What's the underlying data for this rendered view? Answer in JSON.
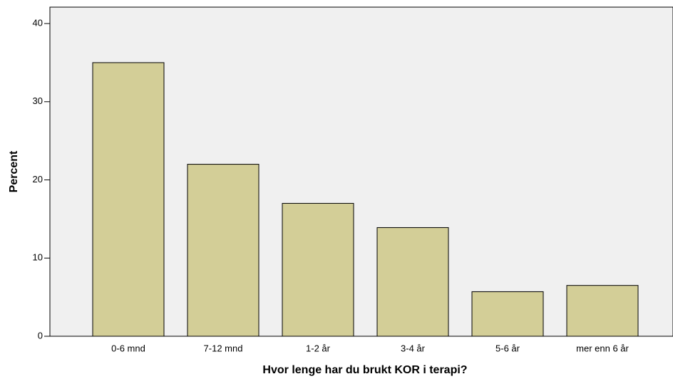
{
  "chart_data": {
    "type": "bar",
    "x_label": "Hvor lenge har du brukt KOR i terapi?",
    "y_label": "Percent",
    "categories": [
      "0-6 mnd",
      "7-12 mnd",
      "1-2 år",
      "3-4 år",
      "5-6 år",
      "mer enn 6 år"
    ],
    "values": [
      35.0,
      22.0,
      17.0,
      13.9,
      5.7,
      6.5
    ],
    "color": "#d3ce97",
    "ylim": [
      0,
      42.1
    ],
    "yticks": [
      0,
      10,
      20,
      30,
      40
    ],
    "grid": false
  }
}
